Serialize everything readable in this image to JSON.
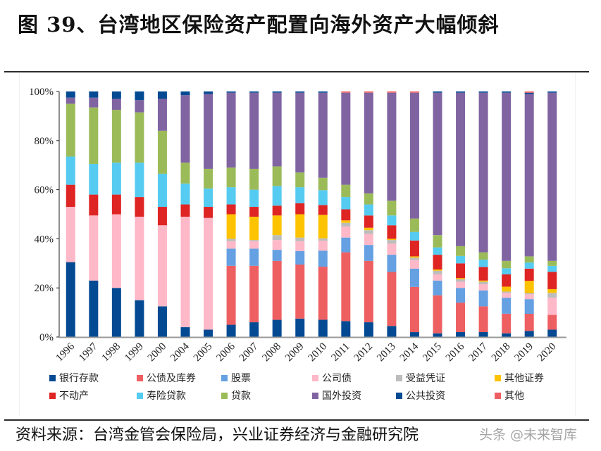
{
  "header": {
    "title": "图 39、台湾地区保险资产配置向海外资产大幅倾斜"
  },
  "footer": {
    "source": "资料来源：台湾金管会保险局，兴业证券经济与金融研究院",
    "watermark": "头条 @未来智库"
  },
  "chart_data": {
    "type": "bar",
    "stacked": true,
    "percent_stacked": true,
    "title": "",
    "xlabel": "",
    "ylabel": "",
    "ylim": [
      0,
      100
    ],
    "yticks": [
      "0%",
      "20%",
      "40%",
      "60%",
      "80%",
      "100%"
    ],
    "grid": false,
    "legend_position": "bottom",
    "categories": [
      "1996",
      "1997",
      "1998",
      "1999",
      "2000",
      "2004",
      "2005",
      "2006",
      "2007",
      "2008",
      "2009",
      "2010",
      "2011",
      "2012",
      "2013",
      "2014",
      "2015",
      "2016",
      "2017",
      "2018",
      "2019",
      "2020"
    ],
    "series": [
      {
        "name": "银行存款",
        "color": "#034a93",
        "values": [
          30.5,
          23,
          20,
          15,
          12.5,
          4,
          3,
          5,
          6,
          7,
          7.5,
          7,
          6.5,
          6,
          4.5,
          2,
          1.5,
          2,
          2,
          1.5,
          2.5,
          3
        ]
      },
      {
        "name": "公债及库券",
        "color": "#ee5f62",
        "values": [
          0,
          0,
          0,
          0,
          0,
          0,
          0,
          24,
          23,
          24,
          22,
          21.5,
          28,
          25,
          22,
          18.5,
          15.5,
          12,
          10.5,
          8,
          7,
          6
        ]
      },
      {
        "name": "股票",
        "color": "#64a0e2",
        "values": [
          0,
          0,
          0,
          0,
          0,
          0,
          0,
          7,
          7,
          4.5,
          5.5,
          6.5,
          6,
          6.5,
          7,
          7.5,
          6,
          6,
          6.5,
          6.5,
          6,
          0
        ]
      },
      {
        "name": "公司债",
        "color": "#ffb8c8",
        "values": [
          22.5,
          26.5,
          30,
          34,
          33,
          45,
          45.5,
          3,
          3,
          4,
          4,
          4,
          4.5,
          4.5,
          4.5,
          3.5,
          2.5,
          2.5,
          2.5,
          2,
          2,
          7
        ]
      },
      {
        "name": "受益凭证",
        "color": "#bdbdbd",
        "values": [
          0,
          0,
          0,
          0,
          0,
          0,
          0,
          1,
          0.5,
          2,
          1.5,
          1,
          1.5,
          1.5,
          1.5,
          1,
          1.5,
          1,
          1,
          0.5,
          0.5,
          2
        ]
      },
      {
        "name": "其他证券",
        "color": "#fdc300",
        "values": [
          0,
          0,
          0,
          0,
          0,
          0,
          0,
          10,
          9.5,
          8,
          9.5,
          9.5,
          1,
          1,
          0.5,
          0.5,
          0.5,
          0.5,
          0.5,
          2,
          5,
          1.5
        ]
      },
      {
        "name": "不动产",
        "color": "#df2424",
        "values": [
          9,
          8.5,
          8,
          8,
          7.5,
          5,
          4.5,
          4,
          4,
          4,
          4.5,
          4,
          4.5,
          5,
          5.5,
          6.5,
          6,
          6,
          5.5,
          5,
          5,
          7
        ]
      },
      {
        "name": "寿险贷款",
        "color": "#56cbf1",
        "values": [
          11.5,
          12.5,
          13,
          14,
          13.5,
          8.5,
          7.5,
          7,
          7,
          8,
          6.5,
          6,
          5,
          4.5,
          4,
          3.5,
          3,
          3,
          3,
          2.5,
          2.5,
          2.5
        ]
      },
      {
        "name": "贷款",
        "color": "#9bbb59",
        "values": [
          21.5,
          23,
          21.5,
          20.5,
          17.5,
          8.5,
          8,
          8,
          8.5,
          8,
          6,
          5,
          5,
          4.5,
          6,
          5.5,
          5,
          4,
          3,
          3,
          2.5,
          2
        ]
      },
      {
        "name": "国外投资",
        "color": "#8064a2",
        "values": [
          2.5,
          4,
          4.5,
          5,
          13,
          27.5,
          30.5,
          30.5,
          31,
          30,
          32.5,
          34.5,
          37.5,
          41,
          44,
          51.5,
          58,
          62.5,
          65,
          68.5,
          66.5,
          68.5
        ]
      },
      {
        "name": "公共投资",
        "color": "#034a93",
        "values": [
          2.5,
          2.5,
          3,
          3.5,
          3,
          1.5,
          1,
          0.5,
          0.5,
          0.5,
          0.5,
          0.5,
          0,
          0,
          0,
          0,
          0.5,
          0.5,
          0.5,
          0.5,
          0.5,
          0.5
        ]
      },
      {
        "name": "其他",
        "color": "#ee5f62",
        "values": [
          0,
          0,
          0,
          0,
          0,
          0,
          0,
          0,
          0,
          0,
          0,
          0,
          0.5,
          0.5,
          0.5,
          0.5,
          0,
          0,
          0,
          0,
          0.5,
          0
        ]
      }
    ]
  }
}
